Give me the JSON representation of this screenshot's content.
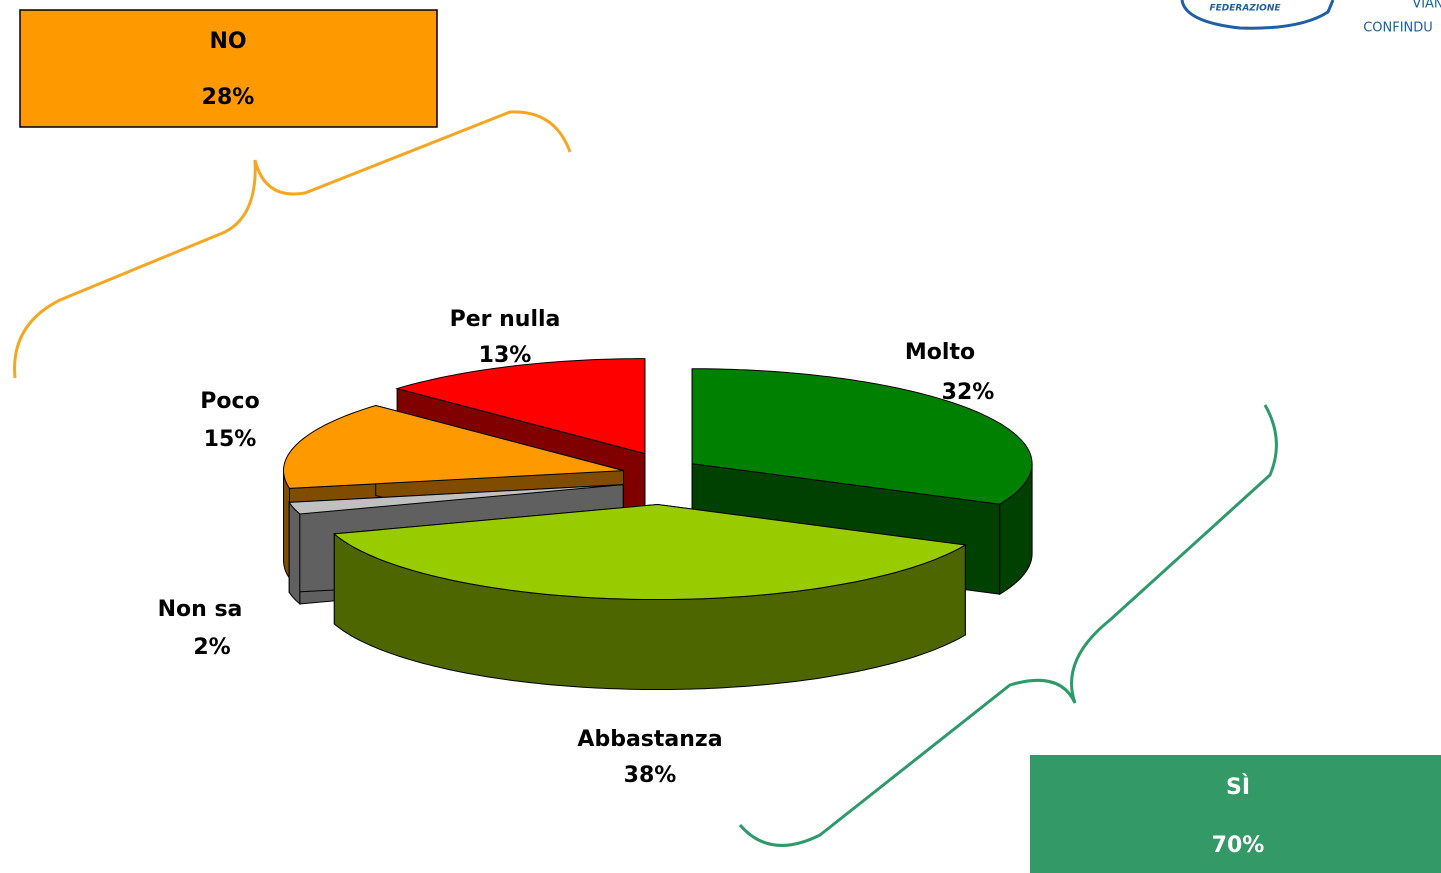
{
  "chart_data": {
    "type": "pie",
    "categories": [
      "Molto",
      "Abbastanza",
      "Non sa",
      "Poco",
      "Per nulla"
    ],
    "values": [
      32,
      38,
      2,
      15,
      13
    ],
    "value_labels": [
      "32%",
      "38%",
      "2%",
      "15%",
      "13%"
    ],
    "colors": [
      "#008000",
      "#99cc00",
      "#c0c0c0",
      "#ff9900",
      "#ff0000"
    ],
    "annotations": [
      {
        "title": "NO",
        "text": "28%",
        "color": "#ff9900"
      },
      {
        "title": "SÌ",
        "text": "70%",
        "color": "#339966"
      }
    ]
  },
  "logo": {
    "line1": "FEDERAZIONE",
    "line2": "VIAN",
    "line3": "CONFINDU"
  }
}
